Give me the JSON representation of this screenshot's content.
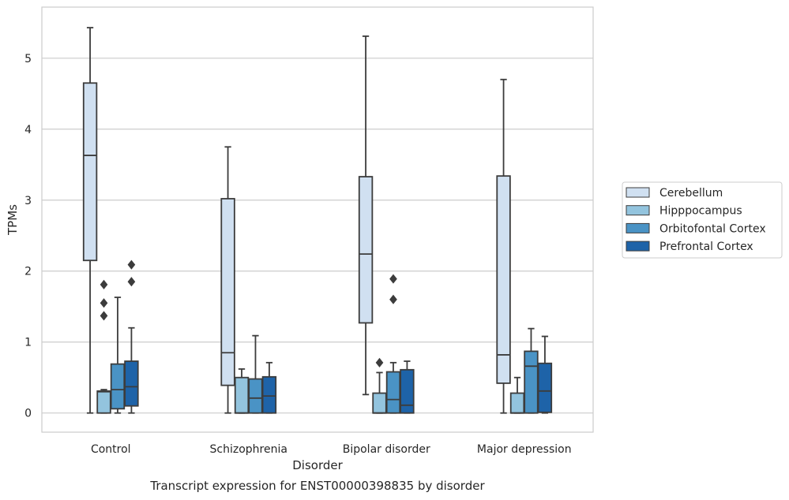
{
  "chart_data": {
    "type": "boxplot",
    "title": "Transcript expression for ENST00000398835 by disorder",
    "xlabel": "Disorder",
    "ylabel": "TPMs",
    "ylim": [
      -0.27,
      5.72
    ],
    "yticks": [
      0,
      1,
      2,
      3,
      4,
      5
    ],
    "grid": "horizontal",
    "legend_position": "right",
    "categories": [
      "Control",
      "Schizophrenia",
      "Bipolar disorder",
      "Major depression"
    ],
    "series": [
      {
        "name": "Cerebellum",
        "color": "#d0e0f1",
        "boxes": [
          {
            "whislo": 0.0,
            "q1": 2.15,
            "med": 3.63,
            "q3": 4.65,
            "whishi": 5.43,
            "fliers": []
          },
          {
            "whislo": 0.0,
            "q1": 0.39,
            "med": 0.85,
            "q3": 3.02,
            "whishi": 3.75,
            "fliers": []
          },
          {
            "whislo": 0.26,
            "q1": 1.27,
            "med": 2.24,
            "q3": 3.33,
            "whishi": 5.31,
            "fliers": []
          },
          {
            "whislo": 0.0,
            "q1": 0.42,
            "med": 0.82,
            "q3": 3.34,
            "whishi": 4.7,
            "fliers": []
          }
        ]
      },
      {
        "name": "Hipppocampus",
        "color": "#93c4de",
        "boxes": [
          {
            "whislo": 0.0,
            "q1": 0.0,
            "med": 0.3,
            "q3": 0.31,
            "whishi": 0.33,
            "fliers": [
              1.37,
              1.55,
              1.81
            ]
          },
          {
            "whislo": 0.0,
            "q1": 0.0,
            "med": 0.0,
            "q3": 0.5,
            "whishi": 0.62,
            "fliers": []
          },
          {
            "whislo": 0.0,
            "q1": 0.0,
            "med": 0.0,
            "q3": 0.28,
            "whishi": 0.57,
            "fliers": [
              0.71
            ]
          },
          {
            "whislo": 0.0,
            "q1": 0.0,
            "med": 0.0,
            "q3": 0.28,
            "whishi": 0.5,
            "fliers": []
          }
        ]
      },
      {
        "name": "Orbitofontal Cortex",
        "color": "#4a93c5",
        "boxes": [
          {
            "whislo": 0.0,
            "q1": 0.06,
            "med": 0.33,
            "q3": 0.69,
            "whishi": 1.63,
            "fliers": []
          },
          {
            "whislo": 0.0,
            "q1": 0.0,
            "med": 0.21,
            "q3": 0.48,
            "whishi": 1.09,
            "fliers": []
          },
          {
            "whislo": 0.0,
            "q1": 0.0,
            "med": 0.19,
            "q3": 0.58,
            "whishi": 0.71,
            "fliers": [
              1.6,
              1.89
            ]
          },
          {
            "whislo": 0.0,
            "q1": 0.0,
            "med": 0.66,
            "q3": 0.87,
            "whishi": 1.19,
            "fliers": []
          }
        ]
      },
      {
        "name": "Prefrontal Cortex",
        "color": "#1e63a8",
        "boxes": [
          {
            "whislo": 0.0,
            "q1": 0.1,
            "med": 0.37,
            "q3": 0.73,
            "whishi": 1.2,
            "fliers": [
              1.85,
              2.09
            ]
          },
          {
            "whislo": 0.0,
            "q1": 0.0,
            "med": 0.24,
            "q3": 0.51,
            "whishi": 0.71,
            "fliers": []
          },
          {
            "whislo": 0.0,
            "q1": 0.0,
            "med": 0.11,
            "q3": 0.61,
            "whishi": 0.73,
            "fliers": []
          },
          {
            "whislo": 0.0,
            "q1": 0.01,
            "med": 0.31,
            "q3": 0.7,
            "whishi": 1.08,
            "fliers": []
          }
        ]
      }
    ]
  },
  "colors": {
    "grid": "#cccccc",
    "axes_frame": "#cccccc",
    "box_edge": "#3c3c3c",
    "text": "#262626"
  }
}
